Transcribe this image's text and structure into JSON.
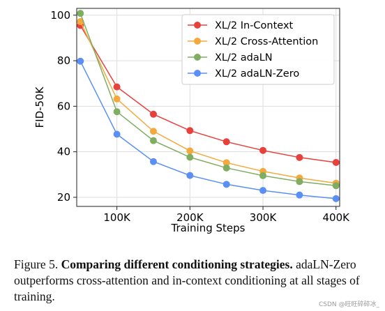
{
  "chart_data": {
    "type": "line",
    "title": "",
    "xlabel": "Training Steps",
    "ylabel": "FID-50K",
    "x": [
      50000,
      100000,
      150000,
      200000,
      250000,
      300000,
      350000,
      400000
    ],
    "xlim": [
      45000,
      405000
    ],
    "ylim": [
      16,
      103
    ],
    "xticks": [
      100000,
      200000,
      300000,
      400000
    ],
    "xtick_labels": [
      "100K",
      "200K",
      "300K",
      "400K"
    ],
    "yticks": [
      20,
      40,
      60,
      80,
      100
    ],
    "ytick_labels": [
      "20",
      "40",
      "60",
      "80",
      "100"
    ],
    "grid": true,
    "legend_position": "top-right",
    "series": [
      {
        "name": "XL/2 In-Context",
        "color": "#e8403a",
        "values": [
          95.5,
          68.5,
          56.5,
          49.3,
          44.4,
          40.6,
          37.5,
          35.3
        ]
      },
      {
        "name": "XL/2 Cross-Attention",
        "color": "#f4a93d",
        "values": [
          97.2,
          63.2,
          49.0,
          40.4,
          35.2,
          31.4,
          28.5,
          26.2
        ]
      },
      {
        "name": "XL/2 adaLN",
        "color": "#7fae62",
        "values": [
          100.8,
          57.6,
          44.9,
          37.6,
          32.9,
          29.5,
          26.9,
          25.1
        ]
      },
      {
        "name": "XL/2 adaLN-Zero",
        "color": "#5b8ff5",
        "values": [
          79.8,
          47.7,
          35.7,
          29.6,
          25.7,
          23.0,
          21.0,
          19.4
        ]
      }
    ]
  },
  "caption": {
    "label": "Figure 5.",
    "bold": "Comparing different conditioning strategies.",
    "text": "adaLN-Zero outperforms cross-attention and in-context conditioning at all stages of training."
  },
  "watermark": "CSDN @旺旺碎碎冰_"
}
